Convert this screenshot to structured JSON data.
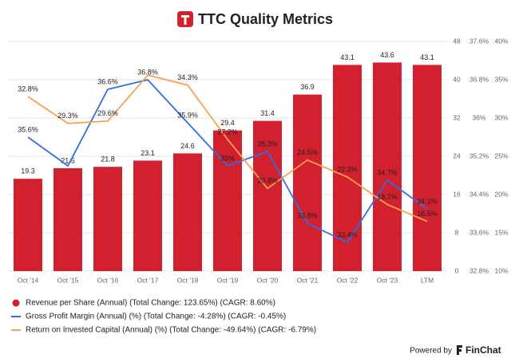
{
  "chart_data": {
    "type": "bar",
    "title": "TTC Quality Metrics",
    "categories": [
      "Oct '14",
      "Oct '15",
      "Oct '16",
      "Oct '17",
      "Oct '18",
      "Oct '19",
      "Oct '20",
      "Oct '21",
      "Oct '22",
      "Oct '23",
      "LTM"
    ],
    "series": [
      {
        "name": "Revenue per Share (Annual) (Total Change: 123.65%) (CAGR: 8.60%)",
        "type": "bar",
        "axis": "y",
        "color": "#d3202e",
        "values": [
          19.3,
          21.5,
          21.8,
          23.1,
          24.6,
          29.4,
          31.4,
          36.9,
          43.1,
          43.6,
          43.1
        ]
      },
      {
        "name": "Gross Profit Margin (Annual) (%) (Total Change: -4.28%) (CAGR: -0.45%)",
        "type": "line",
        "axis": "y2",
        "color": "#2f6fe4",
        "values": [
          35.6,
          35.0,
          36.6,
          36.8,
          35.9,
          35.0,
          35.3,
          33.8,
          33.4,
          34.7,
          34.1
        ],
        "value_labels": [
          "35.6%",
          null,
          "36.6%",
          "36.8%",
          "35.9%",
          "35%",
          "35.3%",
          "33.8%",
          "33.4%",
          "34.7%",
          "34.1%"
        ]
      },
      {
        "name": "Return on Invested Capital (Annual) (%) (Total Change: -49.64%) (CAGR: -6.79%)",
        "type": "line",
        "axis": "y3",
        "color": "#f6a24f",
        "values": [
          32.8,
          29.3,
          29.6,
          35.6,
          34.3,
          27.2,
          20.8,
          24.5,
          22.3,
          18.7,
          16.5
        ],
        "value_labels": [
          "32.8%",
          "29.3%",
          "29.6%",
          null,
          "34.3%",
          "27.2%",
          "20.8%",
          "24.5%",
          "22.3%",
          "18.7%",
          "16.5%"
        ]
      }
    ],
    "ylim": [
      0,
      48
    ],
    "yticks": [
      0,
      8,
      16,
      24,
      32,
      40,
      48
    ],
    "y2lim": [
      32.8,
      37.6
    ],
    "y2ticks": [
      {
        "value": 32.8,
        "label": "32.8%"
      },
      {
        "value": 33.6,
        "label": "33.6%"
      },
      {
        "value": 34.4,
        "label": "34.4%"
      },
      {
        "value": 35.2,
        "label": "35.2%"
      },
      {
        "value": 36,
        "label": "36%"
      },
      {
        "value": 36.8,
        "label": "36.8%"
      },
      {
        "value": 37.6,
        "label": "37.6%"
      }
    ],
    "y3lim": [
      10,
      40
    ],
    "y3ticks": [
      {
        "value": 10,
        "label": "10%"
      },
      {
        "value": 15,
        "label": "15%"
      },
      {
        "value": 20,
        "label": "20%"
      },
      {
        "value": 25,
        "label": "25%"
      },
      {
        "value": 30,
        "label": "30%"
      },
      {
        "value": 35,
        "label": "35%"
      },
      {
        "value": 40,
        "label": "40%"
      }
    ],
    "grid": true
  },
  "footer": {
    "prefix": "Powered by",
    "brand": "FinChat"
  }
}
